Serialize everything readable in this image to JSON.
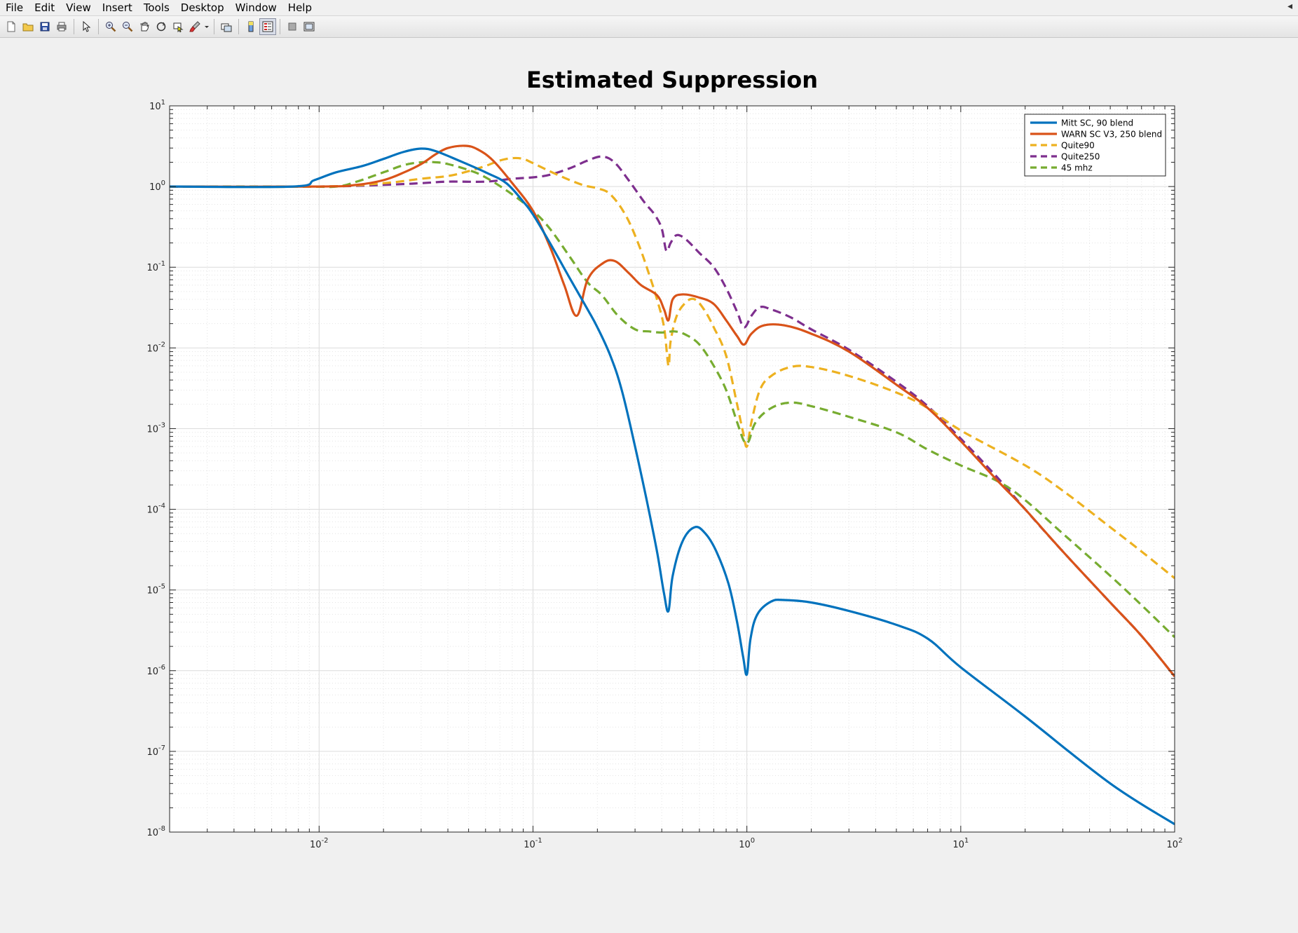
{
  "menu": {
    "items": [
      "File",
      "Edit",
      "View",
      "Insert",
      "Tools",
      "Desktop",
      "Window",
      "Help"
    ],
    "close_glyph": "◂"
  },
  "toolbar": {
    "buttons": [
      {
        "icon": "new-figure-icon"
      },
      {
        "icon": "open-file-icon"
      },
      {
        "icon": "save-icon"
      },
      {
        "icon": "print-icon"
      },
      {
        "icon": "pointer-icon"
      },
      {
        "icon": "zoom-in-icon"
      },
      {
        "icon": "zoom-out-icon"
      },
      {
        "icon": "pan-icon"
      },
      {
        "icon": "rotate-3d-icon"
      },
      {
        "icon": "data-cursor-icon"
      },
      {
        "icon": "brush-icon"
      },
      {
        "icon": "link-plot-icon"
      },
      {
        "icon": "colorbar-icon"
      },
      {
        "icon": "legend-icon"
      },
      {
        "icon": "hide-plot-tools-icon"
      },
      {
        "icon": "show-plot-tools-icon"
      }
    ]
  },
  "chart_data": {
    "type": "line",
    "title": "Estimated Suppression",
    "xlabel": "",
    "ylabel": "",
    "xscale": "log",
    "yscale": "log",
    "xlim": [
      0.002,
      100
    ],
    "ylim": [
      1e-08,
      10
    ],
    "grid": true,
    "minor_grid": true,
    "legend_position": "top-right",
    "x_tick_labels": [
      {
        "base": "10",
        "exp": "-2",
        "value": 0.01
      },
      {
        "base": "10",
        "exp": "-1",
        "value": 0.1
      },
      {
        "base": "10",
        "exp": "0",
        "value": 1
      },
      {
        "base": "10",
        "exp": "1",
        "value": 10
      },
      {
        "base": "10",
        "exp": "2",
        "value": 100
      }
    ],
    "y_tick_labels": [
      {
        "base": "10",
        "exp": "1",
        "value": 10
      },
      {
        "base": "10",
        "exp": "0",
        "value": 1
      },
      {
        "base": "10",
        "exp": "-1",
        "value": 0.1
      },
      {
        "base": "10",
        "exp": "-2",
        "value": 0.01
      },
      {
        "base": "10",
        "exp": "-3",
        "value": 0.001
      },
      {
        "base": "10",
        "exp": "-4",
        "value": 0.0001
      },
      {
        "base": "10",
        "exp": "-5",
        "value": 1e-05
      },
      {
        "base": "10",
        "exp": "-6",
        "value": 1e-06
      },
      {
        "base": "10",
        "exp": "-7",
        "value": 1e-07
      },
      {
        "base": "10",
        "exp": "-8",
        "value": 1e-08
      }
    ],
    "series": [
      {
        "name": "Mitt SC, 90 blend",
        "color": "#0072BD",
        "dash": "solid",
        "points": [
          [
            0.002,
            1.0
          ],
          [
            0.0075,
            1.0
          ],
          [
            0.0095,
            1.2
          ],
          [
            0.012,
            1.5
          ],
          [
            0.016,
            1.8
          ],
          [
            0.02,
            2.2
          ],
          [
            0.025,
            2.7
          ],
          [
            0.03,
            2.95
          ],
          [
            0.035,
            2.75
          ],
          [
            0.045,
            2.1
          ],
          [
            0.06,
            1.5
          ],
          [
            0.075,
            1.1
          ],
          [
            0.09,
            0.65
          ],
          [
            0.1,
            0.45
          ],
          [
            0.12,
            0.2
          ],
          [
            0.15,
            0.07
          ],
          [
            0.18,
            0.03
          ],
          [
            0.2,
            0.018
          ],
          [
            0.23,
            0.008
          ],
          [
            0.26,
            0.003
          ],
          [
            0.3,
            0.0006
          ],
          [
            0.34,
            0.00013
          ],
          [
            0.38,
            3e-05
          ],
          [
            0.41,
            9e-06
          ],
          [
            0.43,
            5.5e-06
          ],
          [
            0.45,
            1.5e-05
          ],
          [
            0.5,
            4e-05
          ],
          [
            0.57,
            6e-05
          ],
          [
            0.64,
            5e-05
          ],
          [
            0.72,
            3e-05
          ],
          [
            0.82,
            1.2e-05
          ],
          [
            0.9,
            4e-06
          ],
          [
            0.96,
            1.5e-06
          ],
          [
            1.0,
            9e-07
          ],
          [
            1.04,
            2.5e-06
          ],
          [
            1.12,
            5e-06
          ],
          [
            1.3,
            7.2e-06
          ],
          [
            1.5,
            7.5e-06
          ],
          [
            2.0,
            7e-06
          ],
          [
            3.0,
            5.5e-06
          ],
          [
            5.0,
            3.7e-06
          ],
          [
            7.0,
            2.5e-06
          ],
          [
            10.0,
            1.1e-06
          ],
          [
            20.0,
            2.7e-07
          ],
          [
            50.0,
            4e-08
          ],
          [
            100.0,
            1.25e-08
          ]
        ]
      },
      {
        "name": "WARN SC V3, 250 blend",
        "color": "#D95319",
        "dash": "solid",
        "points": [
          [
            0.002,
            1.0
          ],
          [
            0.01,
            1.0
          ],
          [
            0.015,
            1.05
          ],
          [
            0.02,
            1.2
          ],
          [
            0.025,
            1.5
          ],
          [
            0.03,
            1.9
          ],
          [
            0.035,
            2.5
          ],
          [
            0.04,
            3.0
          ],
          [
            0.048,
            3.2
          ],
          [
            0.055,
            2.9
          ],
          [
            0.065,
            2.1
          ],
          [
            0.08,
            1.1
          ],
          [
            0.1,
            0.5
          ],
          [
            0.12,
            0.18
          ],
          [
            0.14,
            0.06
          ],
          [
            0.16,
            0.025
          ],
          [
            0.18,
            0.07
          ],
          [
            0.21,
            0.11
          ],
          [
            0.24,
            0.12
          ],
          [
            0.28,
            0.085
          ],
          [
            0.32,
            0.06
          ],
          [
            0.38,
            0.045
          ],
          [
            0.41,
            0.03
          ],
          [
            0.43,
            0.022
          ],
          [
            0.45,
            0.04
          ],
          [
            0.5,
            0.046
          ],
          [
            0.6,
            0.042
          ],
          [
            0.7,
            0.035
          ],
          [
            0.8,
            0.022
          ],
          [
            0.9,
            0.014
          ],
          [
            0.97,
            0.011
          ],
          [
            1.05,
            0.015
          ],
          [
            1.2,
            0.019
          ],
          [
            1.5,
            0.019
          ],
          [
            2.0,
            0.015
          ],
          [
            3.0,
            0.009
          ],
          [
            5.0,
            0.0035
          ],
          [
            7.0,
            0.0018
          ],
          [
            10.0,
            0.0007
          ],
          [
            15.0,
            0.00022
          ],
          [
            20.0,
            0.0001
          ],
          [
            30.0,
            3e-05
          ],
          [
            50.0,
            7e-06
          ],
          [
            70.0,
            2.7e-06
          ],
          [
            100.0,
            8.5e-07
          ]
        ]
      },
      {
        "name": "Quite90",
        "color": "#EDB120",
        "dash": "dashed",
        "points": [
          [
            0.002,
            1.0
          ],
          [
            0.01,
            1.0
          ],
          [
            0.02,
            1.1
          ],
          [
            0.03,
            1.25
          ],
          [
            0.04,
            1.35
          ],
          [
            0.05,
            1.55
          ],
          [
            0.06,
            1.8
          ],
          [
            0.07,
            2.1
          ],
          [
            0.08,
            2.25
          ],
          [
            0.09,
            2.2
          ],
          [
            0.1,
            1.95
          ],
          [
            0.13,
            1.4
          ],
          [
            0.17,
            1.05
          ],
          [
            0.2,
            0.95
          ],
          [
            0.23,
            0.8
          ],
          [
            0.27,
            0.45
          ],
          [
            0.31,
            0.2
          ],
          [
            0.35,
            0.08
          ],
          [
            0.38,
            0.04
          ],
          [
            0.41,
            0.018
          ],
          [
            0.43,
            0.006
          ],
          [
            0.44,
            0.012
          ],
          [
            0.47,
            0.025
          ],
          [
            0.52,
            0.037
          ],
          [
            0.57,
            0.04
          ],
          [
            0.63,
            0.03
          ],
          [
            0.7,
            0.018
          ],
          [
            0.8,
            0.008
          ],
          [
            0.9,
            0.002
          ],
          [
            0.96,
            0.0009
          ],
          [
            1.0,
            0.0006
          ],
          [
            1.05,
            0.0012
          ],
          [
            1.15,
            0.003
          ],
          [
            1.3,
            0.0045
          ],
          [
            1.6,
            0.0058
          ],
          [
            2.0,
            0.0058
          ],
          [
            3.0,
            0.0045
          ],
          [
            5.0,
            0.0028
          ],
          [
            7.0,
            0.0018
          ],
          [
            10.0,
            0.00095
          ],
          [
            20.0,
            0.00035
          ],
          [
            30.0,
            0.00017
          ],
          [
            50.0,
            6e-05
          ],
          [
            70.0,
            3e-05
          ],
          [
            100.0,
            1.4e-05
          ]
        ]
      },
      {
        "name": "Quite250",
        "color": "#7E2F8E",
        "dash": "dashed",
        "points": [
          [
            0.002,
            1.0
          ],
          [
            0.01,
            1.0
          ],
          [
            0.02,
            1.05
          ],
          [
            0.03,
            1.1
          ],
          [
            0.04,
            1.15
          ],
          [
            0.06,
            1.15
          ],
          [
            0.08,
            1.25
          ],
          [
            0.1,
            1.3
          ],
          [
            0.12,
            1.4
          ],
          [
            0.15,
            1.7
          ],
          [
            0.18,
            2.1
          ],
          [
            0.21,
            2.35
          ],
          [
            0.24,
            2.0
          ],
          [
            0.28,
            1.2
          ],
          [
            0.33,
            0.65
          ],
          [
            0.37,
            0.45
          ],
          [
            0.4,
            0.3
          ],
          [
            0.42,
            0.16
          ],
          [
            0.44,
            0.2
          ],
          [
            0.47,
            0.25
          ],
          [
            0.52,
            0.22
          ],
          [
            0.6,
            0.15
          ],
          [
            0.7,
            0.1
          ],
          [
            0.8,
            0.055
          ],
          [
            0.9,
            0.028
          ],
          [
            0.97,
            0.018
          ],
          [
            1.05,
            0.025
          ],
          [
            1.15,
            0.032
          ],
          [
            1.3,
            0.03
          ],
          [
            1.6,
            0.024
          ],
          [
            2.0,
            0.017
          ],
          [
            3.0,
            0.0095
          ],
          [
            5.0,
            0.0038
          ],
          [
            7.0,
            0.0019
          ],
          [
            10.0,
            0.00075
          ],
          [
            15.0,
            0.00024
          ],
          [
            20.0,
            0.0001
          ],
          [
            30.0,
            3e-05
          ],
          [
            50.0,
            7e-06
          ],
          [
            70.0,
            2.7e-06
          ],
          [
            100.0,
            8.5e-07
          ]
        ]
      },
      {
        "name": "45 mhz",
        "color": "#77AC30",
        "dash": "dashed",
        "points": [
          [
            0.002,
            1.0
          ],
          [
            0.008,
            1.0
          ],
          [
            0.012,
            1.0
          ],
          [
            0.015,
            1.15
          ],
          [
            0.02,
            1.5
          ],
          [
            0.025,
            1.85
          ],
          [
            0.03,
            2.0
          ],
          [
            0.035,
            2.0
          ],
          [
            0.04,
            1.9
          ],
          [
            0.05,
            1.6
          ],
          [
            0.06,
            1.3
          ],
          [
            0.08,
            0.8
          ],
          [
            0.1,
            0.5
          ],
          [
            0.12,
            0.3
          ],
          [
            0.15,
            0.13
          ],
          [
            0.18,
            0.065
          ],
          [
            0.21,
            0.045
          ],
          [
            0.25,
            0.025
          ],
          [
            0.3,
            0.017
          ],
          [
            0.35,
            0.016
          ],
          [
            0.4,
            0.0155
          ],
          [
            0.46,
            0.016
          ],
          [
            0.52,
            0.0145
          ],
          [
            0.6,
            0.011
          ],
          [
            0.7,
            0.006
          ],
          [
            0.8,
            0.003
          ],
          [
            0.9,
            0.0012
          ],
          [
            0.97,
            0.0007
          ],
          [
            1.02,
            0.0007
          ],
          [
            1.1,
            0.0012
          ],
          [
            1.3,
            0.0018
          ],
          [
            1.6,
            0.0021
          ],
          [
            2.0,
            0.0019
          ],
          [
            3.0,
            0.0014
          ],
          [
            5.0,
            0.0009
          ],
          [
            7.0,
            0.00055
          ],
          [
            10.0,
            0.00035
          ],
          [
            15.0,
            0.00022
          ],
          [
            20.0,
            0.00013
          ],
          [
            30.0,
            5e-05
          ],
          [
            50.0,
            1.5e-05
          ],
          [
            70.0,
            6.5e-06
          ],
          [
            100.0,
            2.6e-06
          ]
        ]
      }
    ]
  }
}
